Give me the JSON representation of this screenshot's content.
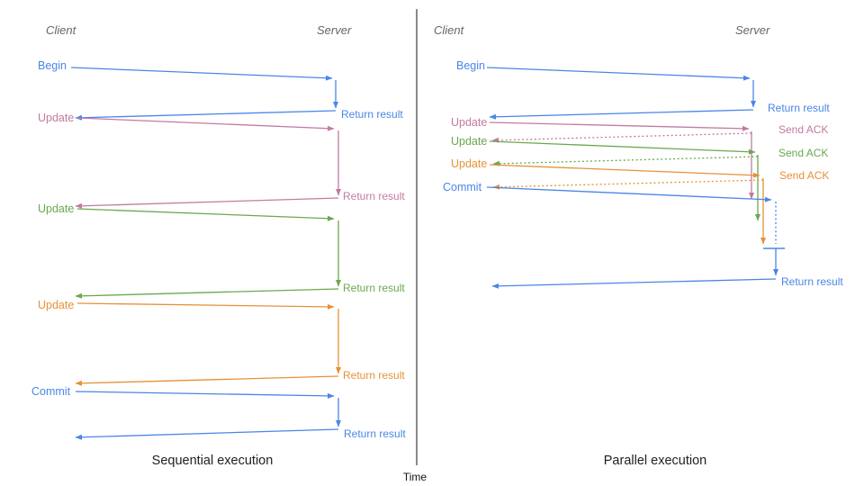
{
  "diagram": {
    "panels": [
      {
        "title": "Sequential execution",
        "client_header": "Client",
        "server_header": "Server",
        "messages": [
          {
            "label": "Begin",
            "color": "blue",
            "reply_label": "Return result",
            "reply_style": "solid"
          },
          {
            "label": "Update",
            "color": "pink",
            "reply_label": "Return result",
            "reply_style": "solid"
          },
          {
            "label": "Update",
            "color": "green",
            "reply_label": "Return result",
            "reply_style": "solid"
          },
          {
            "label": "Update",
            "color": "orange",
            "reply_label": "Return result",
            "reply_style": "solid"
          },
          {
            "label": "Commit",
            "color": "blue",
            "reply_label": "Return result",
            "reply_style": "solid"
          }
        ]
      },
      {
        "title": "Parallel execution",
        "client_header": "Client",
        "server_header": "Server",
        "messages": [
          {
            "label": "Begin",
            "color": "blue",
            "reply_label": "Return result",
            "reply_style": "solid"
          },
          {
            "label": "Update",
            "color": "pink",
            "reply_label": "Send ACK",
            "reply_style": "dotted"
          },
          {
            "label": "Update",
            "color": "green",
            "reply_label": "Send ACK",
            "reply_style": "dotted"
          },
          {
            "label": "Update",
            "color": "orange",
            "reply_label": "Send ACK",
            "reply_style": "dotted"
          },
          {
            "label": "Commit",
            "color": "blue",
            "reply_label": "Return result",
            "reply_style": "solid"
          }
        ]
      }
    ],
    "time_axis_label": "Time"
  },
  "colors": {
    "blue": "#4a86e8",
    "pink": "#c27ba0",
    "green": "#6aa84f",
    "orange": "#e69138",
    "header_gray": "#666666",
    "title_black": "#1f1f1f",
    "axis_dark": "#3c3c3c"
  }
}
